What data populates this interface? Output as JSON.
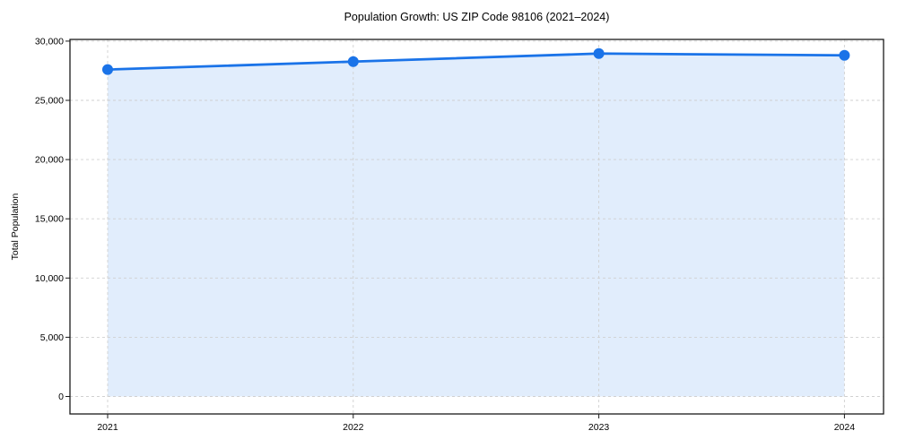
{
  "chart_data": {
    "type": "line",
    "title": "Population Growth: US ZIP Code 98106 (2021–2024)",
    "xlabel": "",
    "ylabel": "Total Population",
    "x": [
      "2021",
      "2022",
      "2023",
      "2024"
    ],
    "series": [
      {
        "name": "Total Population",
        "values": [
          27600,
          28270,
          28950,
          28800
        ]
      }
    ],
    "x_tick_labels": [
      "2021",
      "2022",
      "2023",
      "2024"
    ],
    "yticks": [
      0,
      5000,
      10000,
      15000,
      20000,
      25000,
      30000
    ],
    "y_tick_labels": [
      "0",
      "5,000",
      "10,000",
      "15,000",
      "20,000",
      "25,000",
      "30,000"
    ],
    "ylim": [
      -1450,
      30150
    ],
    "grid": true,
    "grid_style": "dashed",
    "legend_position": "none",
    "area_fill": true,
    "marker": "circle",
    "colors": {
      "line": "#1a73e8",
      "marker": "#1a73e8",
      "fill": "rgba(26,115,232,0.13)",
      "grid": "#d0d0d0",
      "axis": "#1a1a1a",
      "text": "#000000",
      "background": "#ffffff"
    }
  }
}
